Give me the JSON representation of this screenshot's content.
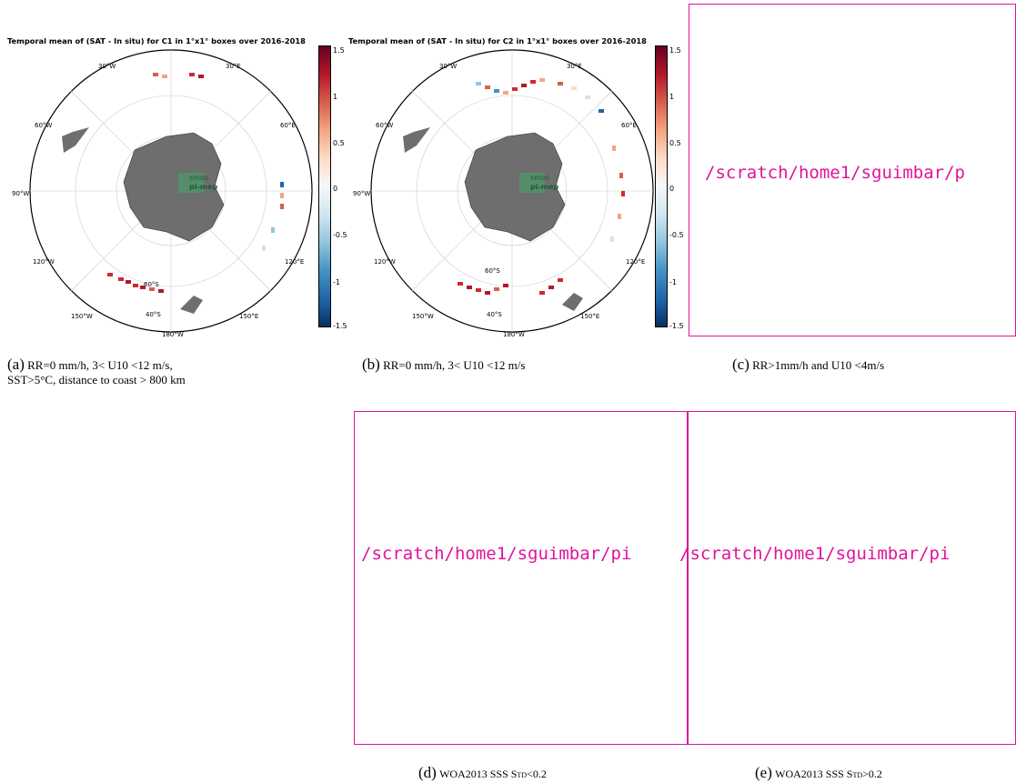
{
  "panels": [
    {
      "id": "a",
      "title": "Temporal mean of (SAT - In situ) for C1 in 1°x1° boxes over 2016-2018",
      "caption_tag": "(a)",
      "caption_line1": "RR=0  mm/h,  3<  U10  <12  m/s,",
      "caption_line2": "SST>5°C, distance to coast > 800 km"
    },
    {
      "id": "b",
      "title": "Temporal mean of (SAT - In situ) for C2 in 1°x1° boxes over 2016-2018",
      "caption_tag": "(b)",
      "caption_line1": "RR=0 mm/h, 3< U10 <12 m/s"
    },
    {
      "id": "c",
      "missing_path": "/scratch/home1/sguimbar/p",
      "caption_tag": "(c)",
      "caption_line1": "RR>1mm/h and U10 <4m/s"
    },
    {
      "id": "d",
      "missing_path": "/scratch/home1/sguimbar/pi",
      "caption_tag": "(d)",
      "caption_line1": "WOA2013 SSS Std<0.2"
    },
    {
      "id": "e",
      "missing_path": "/scratch/home1/sguimbar/pi",
      "caption_tag": "(e)",
      "caption_line1": "WOA2013 SSS Std>0.2"
    }
  ],
  "map_labels": {
    "lon": [
      "30°W",
      "30°E",
      "60°W",
      "60°E",
      "90°W",
      "120°E",
      "120°W",
      "150°W",
      "150°E",
      "180°W"
    ],
    "lat": [
      "60°S",
      "40°S"
    ],
    "logo_line1": "smos",
    "logo_line2": "pi-mep"
  },
  "colorbar": {
    "ticks": [
      "1.5",
      "1",
      "0.5",
      "0",
      "-0.5",
      "-1",
      "-1.5"
    ],
    "colors": [
      "#67001f",
      "#b2182b",
      "#d6604d",
      "#f4a582",
      "#fddbc7",
      "#f7f7f7",
      "#d1e5f0",
      "#92c5de",
      "#4393c3",
      "#2166ac",
      "#053061"
    ]
  }
}
